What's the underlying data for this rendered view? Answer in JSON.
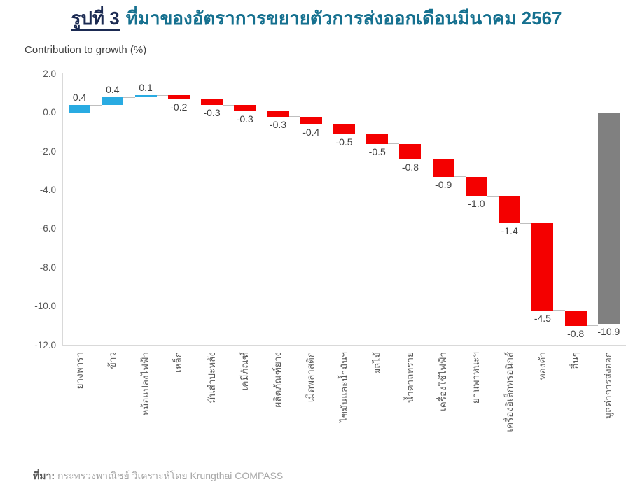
{
  "title": {
    "prefix": "รูปที่ 3",
    "text": "ที่มาของอัตราการขยายตัวการส่งออกเดือนมีนาคม 2567"
  },
  "subtitle": "Contribution to growth (%)",
  "footer": {
    "label": "ที่มา:",
    "text": "กระทรวงพาณิชย์ วิเคราะห์โดย Krungthai COMPASS"
  },
  "colors": {
    "title_navy": "#1B2A52",
    "title_teal": "#15708F",
    "positive": "#29ABE2",
    "negative": "#F40000",
    "total": "#808080",
    "axis": "#D9D9D9",
    "connector": "#BFBFBF",
    "value_text": "#404040",
    "tick_text": "#595959",
    "source_text": "#A6A6A6"
  },
  "chart_data": {
    "type": "bar",
    "subtype": "waterfall",
    "title": "รูปที่ 3 ที่มาของอัตราการขยายตัวการส่งออกเดือนมีนาคม 2567",
    "ylabel": "Contribution to growth (%)",
    "xlabel": "",
    "categories": [
      "ยางพารา",
      "ข้าว",
      "หม้อแปลงไฟฟ้า",
      "เหล็ก",
      "มันสำปะหลัง",
      "เคมีภัณฑ์",
      "ผลิตภัณฑ์ยาง",
      "เม็ดพลาสติก",
      "ไขมันและน้ำมันฯ",
      "ผลไม้",
      "น้ำตาลทราย",
      "เครื่องใช้ไฟฟ้า",
      "ยานพาหนะฯ",
      "เครื่องอิเล็กทรอนิกส์",
      "ทองคำ",
      "อื่นๆ",
      "มูลค่าการส่งออก"
    ],
    "values": [
      0.4,
      0.4,
      0.1,
      -0.2,
      -0.3,
      -0.3,
      -0.3,
      -0.4,
      -0.5,
      -0.5,
      -0.8,
      -0.9,
      -1.0,
      -1.4,
      -4.5,
      -0.8,
      -10.9
    ],
    "labels": [
      "0.4",
      "0.4",
      "0.1",
      "-0.2",
      "-0.3",
      "-0.3",
      "-0.3",
      "-0.4",
      "-0.5",
      "-0.5",
      "-0.8",
      "-0.9",
      "-1.0",
      "-1.4",
      "-4.5",
      "-0.8",
      "-10.9"
    ],
    "roles": [
      "positive",
      "positive",
      "positive",
      "negative",
      "negative",
      "negative",
      "negative",
      "negative",
      "negative",
      "negative",
      "negative",
      "negative",
      "negative",
      "negative",
      "negative",
      "negative",
      "total"
    ],
    "yticks": [
      2.0,
      0.0,
      -2.0,
      -4.0,
      -6.0,
      -8.0,
      -10.0,
      -12.0
    ],
    "ylim": [
      -12.0,
      2.0
    ],
    "grid": false,
    "legend": null
  }
}
